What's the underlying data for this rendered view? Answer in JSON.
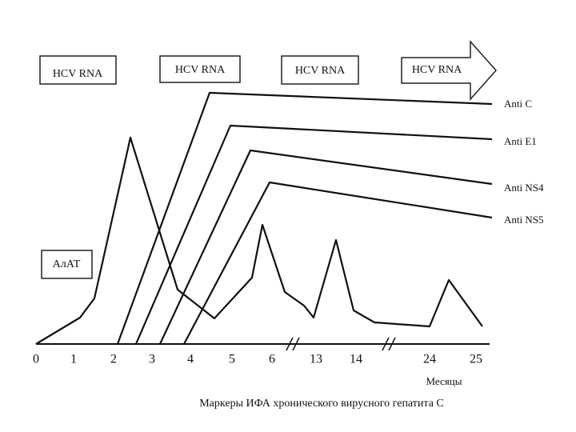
{
  "boxes": [
    "HCV RNA",
    "HCV RNA",
    "HCV RNA",
    "HCV RNA"
  ],
  "alat_label": "АлАТ",
  "markers": [
    "Anti C",
    "Anti E1",
    "Anti NS4",
    "Anti NS5"
  ],
  "x_ticks": [
    "0",
    "1",
    "2",
    "3",
    "4",
    "5",
    "6",
    "13",
    "14",
    "24",
    "25"
  ],
  "x_axis_title": "Месяцы",
  "caption": "Маркеры ИФА хронического вирусного гепатита С"
}
